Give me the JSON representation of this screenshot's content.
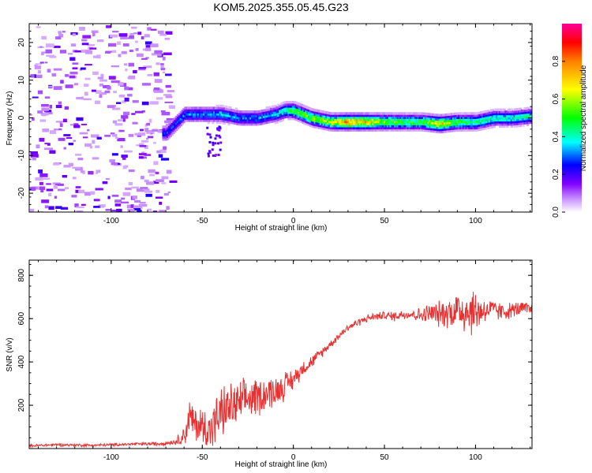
{
  "title": "KOM5.2025.355.05.45.G23",
  "chart_data": [
    {
      "type": "heatmap",
      "xlabel": "Height of straight line (km)",
      "ylabel": "Frequency (Hz)",
      "xlim": [
        -145,
        131
      ],
      "ylim": [
        -25,
        25
      ],
      "xticks": [
        -100,
        -50,
        0,
        50,
        100
      ],
      "yticks": [
        -20,
        -10,
        0,
        10,
        20
      ],
      "colorbar": {
        "label": "Normalized spectral amplitude",
        "range": [
          0,
          1
        ],
        "ticks": [
          0.0,
          0.2,
          0.4,
          0.6,
          0.8
        ],
        "tick_labels": [
          "0.0",
          "0.2",
          "0.4",
          "0.6",
          "0.8"
        ],
        "colormap": [
          "#ffffff",
          "#8000ff",
          "#0000ff",
          "#00ffff",
          "#00ff00",
          "#ffff00",
          "#ff8000",
          "#ff0000",
          "#ff00aa"
        ]
      },
      "ridge": {
        "description_points_x": [
          -70,
          -60,
          -50,
          -40,
          -30,
          -20,
          -10,
          -5,
          0,
          10,
          20,
          30,
          40,
          50,
          60,
          70,
          80,
          90,
          100,
          110,
          120,
          130
        ],
        "frequency_hz": [
          -4,
          1,
          1,
          1,
          0,
          0,
          1,
          2,
          2,
          0,
          -1,
          -1,
          -1,
          -1,
          -1,
          -1,
          -1.5,
          -1,
          -1,
          0,
          0,
          0.5
        ],
        "amplitude": [
          0.25,
          0.3,
          0.3,
          0.35,
          0.3,
          0.3,
          0.35,
          0.4,
          0.5,
          0.55,
          0.6,
          0.75,
          0.7,
          0.55,
          0.5,
          0.5,
          0.7,
          0.5,
          0.45,
          0.4,
          0.4,
          0.4
        ]
      },
      "noise_region_x": [
        -145,
        -68
      ]
    },
    {
      "type": "line",
      "xlabel": "Height of straight line (km)",
      "ylabel": "SNR (v/v)",
      "xlim": [
        -145,
        131
      ],
      "ylim": [
        0,
        870
      ],
      "xticks": [
        -100,
        -50,
        0,
        50,
        100
      ],
      "yticks": [
        200,
        400,
        600,
        800
      ],
      "series": [
        {
          "name": "SNR",
          "color": "#e83030",
          "x": [
            -145,
            -130,
            -110,
            -90,
            -75,
            -65,
            -60,
            -57,
            -55,
            -50,
            -45,
            -40,
            -35,
            -30,
            -25,
            -20,
            -15,
            -10,
            -5,
            0,
            5,
            10,
            15,
            20,
            25,
            30,
            35,
            40,
            45,
            50,
            55,
            60,
            65,
            70,
            75,
            80,
            85,
            90,
            95,
            100,
            105,
            110,
            115,
            120,
            125,
            131
          ],
          "y": [
            12,
            18,
            15,
            20,
            22,
            30,
            60,
            140,
            120,
            100,
            90,
            160,
            190,
            200,
            230,
            240,
            255,
            265,
            290,
            320,
            370,
            400,
            440,
            480,
            520,
            560,
            580,
            600,
            610,
            615,
            610,
            620,
            620,
            615,
            625,
            620,
            630,
            640,
            640,
            630,
            640,
            640,
            630,
            640,
            645,
            640
          ],
          "noise_amplitude": [
            6,
            6,
            6,
            6,
            8,
            10,
            40,
            80,
            70,
            80,
            90,
            100,
            95,
            90,
            80,
            75,
            70,
            60,
            55,
            40,
            30,
            25,
            20,
            15,
            15,
            15,
            15,
            15,
            15,
            15,
            20,
            20,
            20,
            30,
            40,
            50,
            60,
            80,
            100,
            90,
            50,
            40,
            35,
            30,
            30,
            30
          ]
        }
      ]
    }
  ]
}
